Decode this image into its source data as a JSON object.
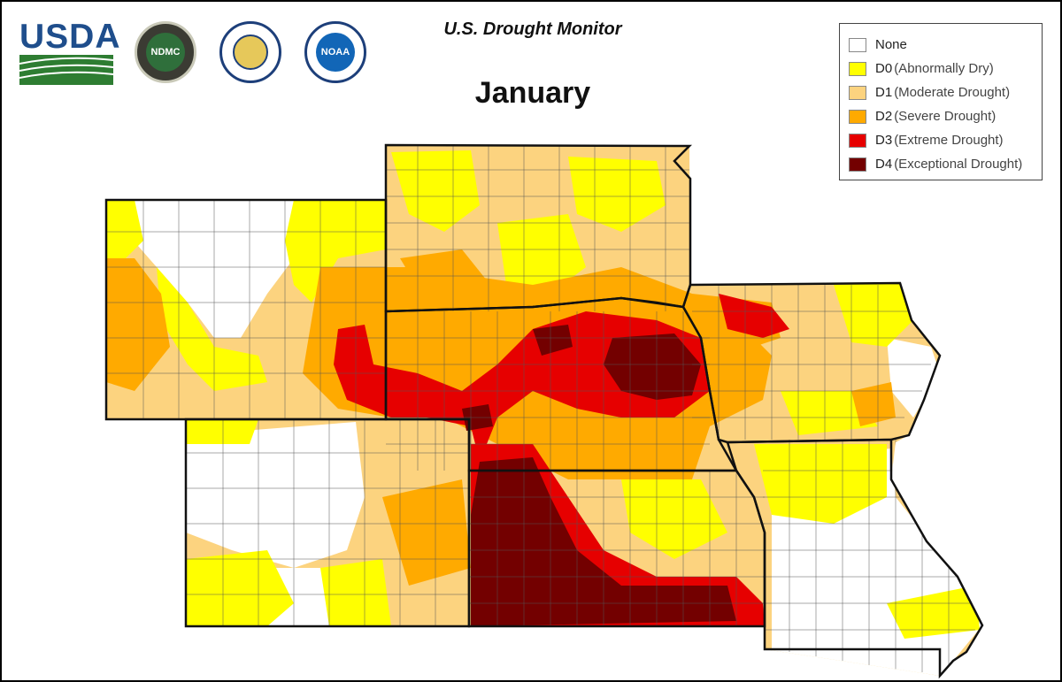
{
  "header": {
    "title": "U.S. Drought Monitor",
    "month": "January",
    "usda_label": "USDA",
    "ndmc_label": "NDMC",
    "noaa_label": "NOAA"
  },
  "legend": {
    "items": [
      {
        "code": "None",
        "desc": "",
        "color": "#ffffff"
      },
      {
        "code": "D0",
        "desc": "(Abnormally Dry)",
        "color": "#ffff00"
      },
      {
        "code": "D1",
        "desc": "(Moderate Drought)",
        "color": "#fcd37f"
      },
      {
        "code": "D2",
        "desc": "(Severe Drought)",
        "color": "#ffaa00"
      },
      {
        "code": "D3",
        "desc": "(Extreme Drought)",
        "color": "#e60000"
      },
      {
        "code": "D4",
        "desc": "(Exceptional Drought)",
        "color": "#730000"
      }
    ]
  },
  "map": {
    "region_states": [
      "Wyoming",
      "South Dakota",
      "Nebraska",
      "Colorado",
      "Kansas",
      "Iowa",
      "Missouri"
    ]
  }
}
